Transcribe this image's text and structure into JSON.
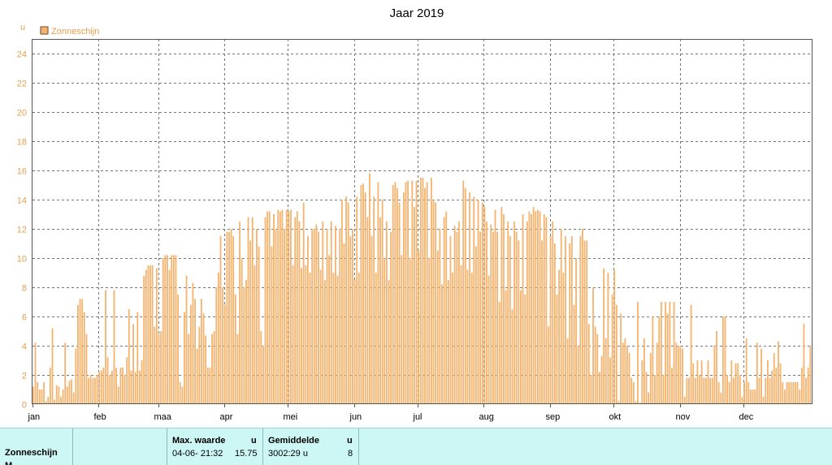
{
  "chart_data": {
    "type": "bar",
    "title": "Jaar 2019",
    "ylabel": "u",
    "xlabel": "",
    "ylim": [
      0,
      25
    ],
    "yticks": [
      0,
      2,
      4,
      6,
      8,
      10,
      12,
      14,
      16,
      18,
      20,
      22,
      24
    ],
    "grid": true,
    "legend": {
      "position": "top-left",
      "entries": [
        "Zonneschijn"
      ]
    },
    "months": [
      "jan",
      "feb",
      "maa",
      "apr",
      "mei",
      "jun",
      "jul",
      "aug",
      "sep",
      "okt",
      "nov",
      "dec"
    ],
    "series": [
      {
        "name": "Zonneschijn",
        "color": "#f5b36e",
        "values": [
          1.2,
          4.2,
          1.5,
          1.0,
          1.0,
          1.5,
          0.2,
          0.5,
          2.5,
          5.2,
          0.3,
          1.3,
          1.2,
          0.5,
          1.0,
          4.2,
          1.2,
          1.6,
          1.7,
          0.8,
          3.8,
          6.8,
          7.2,
          7.2,
          6.3,
          4.8,
          1.8,
          2.0,
          1.8,
          1.8,
          2.0,
          2.2,
          2.3,
          2.5,
          7.8,
          3.2,
          2.0,
          2.3,
          7.8,
          2.5,
          1.2,
          2.5,
          2.5,
          2.0,
          3.2,
          6.5,
          2.3,
          5.5,
          2.2,
          6.3,
          2.3,
          3.0,
          8.8,
          9.2,
          9.5,
          9.5,
          9.5,
          5.3,
          9.3,
          4.8,
          5.0,
          10.0,
          10.2,
          10.2,
          9.2,
          10.2,
          10.2,
          10.2,
          7.5,
          1.5,
          1.2,
          6.3,
          8.8,
          4.8,
          6.8,
          8.3,
          7.2,
          3.8,
          5.3,
          7.2,
          6.2,
          4.7,
          2.5,
          2.5,
          4.8,
          5.0,
          8.0,
          9.0,
          11.5,
          8.0,
          6.8,
          11.8,
          11.8,
          12.0,
          11.5,
          7.5,
          4.8,
          12.5,
          10.0,
          8.0,
          8.5,
          12.8,
          11.2,
          12.8,
          9.5,
          12.0,
          10.8,
          5.0,
          4.0,
          12.8,
          13.2,
          13.2,
          10.8,
          13.0,
          12.0,
          13.3,
          13.2,
          13.3,
          12.0,
          13.3,
          13.2,
          13.3,
          9.5,
          12.8,
          13.2,
          12.5,
          9.3,
          13.8,
          9.5,
          11.5,
          9.0,
          12.0,
          12.0,
          12.3,
          11.8,
          9.2,
          12.5,
          8.5,
          12.0,
          10.2,
          12.5,
          9.0,
          12.2,
          8.8,
          12.0,
          14.0,
          11.0,
          14.2,
          13.8,
          11.5,
          12.0,
          8.5,
          14.2,
          9.0,
          15.0,
          15.1,
          14.5,
          12.8,
          15.8,
          11.5,
          14.2,
          9.0,
          15.2,
          12.8,
          14.0,
          10.0,
          12.5,
          8.5,
          11.8,
          15.0,
          15.2,
          14.8,
          13.8,
          10.2,
          14.5,
          15.2,
          15.3,
          10.0,
          15.3,
          13.5,
          15.3,
          10.5,
          15.5,
          15.5,
          14.8,
          15.2,
          10.0,
          15.5,
          14.0,
          13.8,
          10.5,
          12.0,
          8.2,
          12.8,
          13.2,
          8.5,
          11.5,
          9.0,
          12.2,
          11.8,
          12.5,
          9.5,
          15.3,
          14.8,
          9.2,
          14.5,
          9.0,
          14.2,
          10.8,
          14.0,
          11.8,
          13.8,
          13.5,
          12.5,
          8.8,
          12.3,
          11.8,
          13.3,
          11.8,
          7.0,
          13.5,
          13.0,
          7.8,
          12.5,
          11.5,
          6.5,
          12.5,
          11.8,
          11.2,
          7.8,
          13.0,
          7.5,
          12.5,
          13.2,
          13.0,
          13.5,
          13.2,
          13.3,
          13.2,
          11.2,
          13.0,
          12.8,
          5.3,
          11.5,
          12.5,
          11.0,
          7.5,
          9.2,
          12.0,
          9.0,
          11.5,
          4.5,
          11.0,
          11.5,
          6.8,
          10.0,
          4.0,
          11.5,
          12.0,
          11.2,
          11.2,
          5.5,
          2.0,
          8.0,
          5.3,
          4.8,
          2.2,
          3.3,
          9.3,
          4.5,
          9.0,
          3.2,
          7.5,
          9.2,
          6.8,
          0.2,
          6.2,
          4.2,
          4.5,
          4.0,
          3.5,
          1.8,
          1.5,
          0.2,
          7.0,
          0.1,
          3.0,
          4.5,
          2.2,
          0.8,
          3.5,
          6.0,
          2.0,
          4.2,
          6.0,
          7.0,
          2.0,
          7.0,
          6.2,
          7.0,
          2.5,
          7.0,
          4.2,
          4.0,
          4.0,
          3.8,
          0.5,
          1.8,
          1.8,
          6.8,
          2.8,
          1.8,
          3.0,
          2.0,
          3.0,
          1.8,
          1.8,
          3.0,
          1.8,
          1.8,
          4.0,
          5.0,
          1.5,
          0.8,
          6.0,
          6.0,
          2.0,
          1.5,
          3.0,
          1.8,
          2.8,
          2.8,
          2.0,
          0.5,
          1.5,
          4.5,
          1.5,
          1.0,
          1.0,
          1.0,
          4.2,
          1.8,
          3.8,
          0.5,
          1.8,
          3.0,
          1.8,
          2.3,
          3.5,
          2.5,
          4.3,
          2.8,
          1.5,
          1.0,
          1.5,
          1.5,
          1.5,
          1.5,
          1.5,
          1.5,
          1.0,
          2.5,
          5.5,
          1.8,
          2.5,
          4.0
        ]
      }
    ]
  },
  "stats": {
    "row_label": "Zonneschijn",
    "row_label_2": "M",
    "max_header": "Max. waarde",
    "max_unit": "u",
    "max_datetime": "04-06-  21:32",
    "max_value": "15.75",
    "avg_header": "Gemiddelde",
    "avg_unit": "u",
    "avg_total": "3002:29 u",
    "avg_value": "8"
  }
}
